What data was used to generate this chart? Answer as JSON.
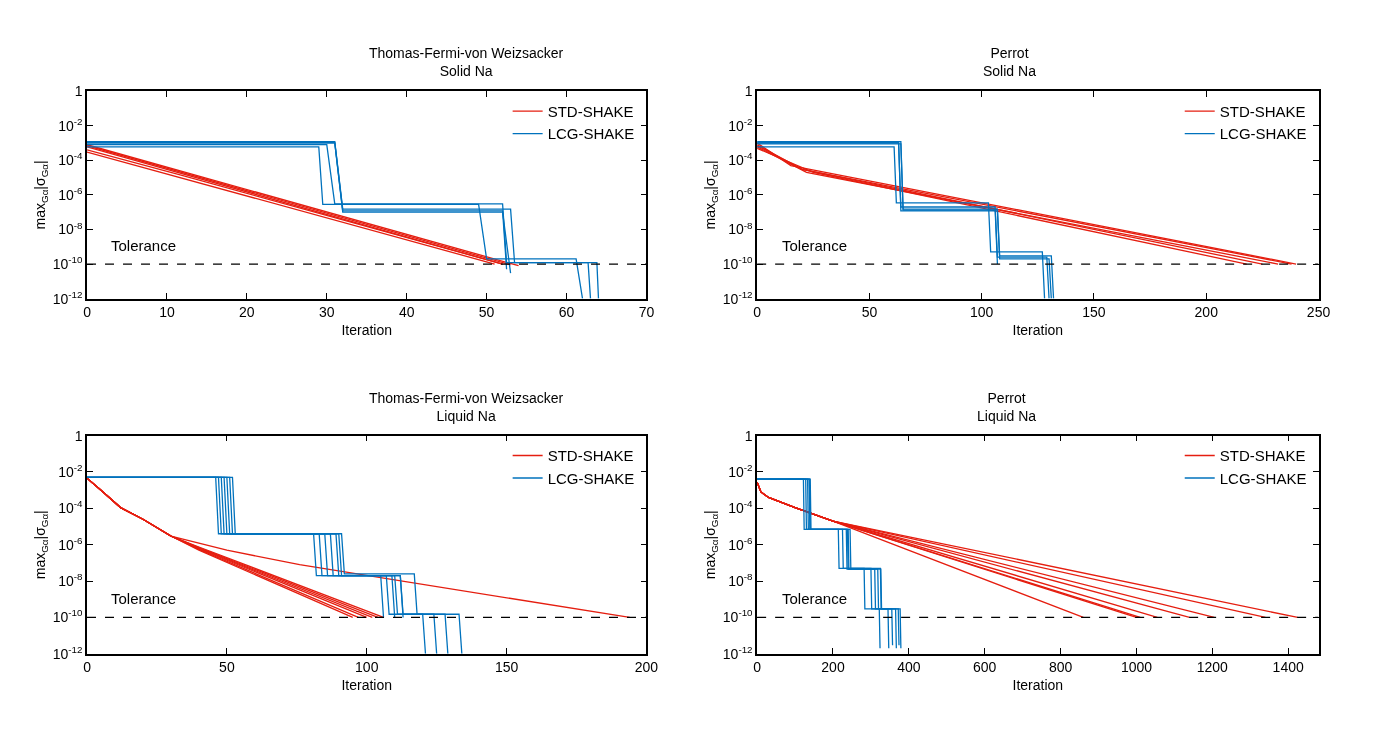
{
  "chart_data": [
    {
      "type": "line",
      "title": "Thomas-Fermi-von Weizsacker",
      "subtitle": "Solid Na",
      "xlabel": "Iteration",
      "ylabel": "max$_{Gα}$|σ$_{Gα}$|",
      "log": "y",
      "legend": "top right",
      "line_style": "solid",
      "xlim": [
        0,
        70
      ],
      "xticks": [
        0,
        10,
        20,
        30,
        40,
        50,
        60,
        70
      ],
      "ylim": [
        1e-12,
        1
      ],
      "yticks": [
        1,
        {
          "value": 0.01,
          "label": "10$^{-2}$"
        },
        {
          "value": 0.0001,
          "label": "10$^{-4}$"
        },
        {
          "value": 1e-06,
          "label": "10$^{-6}$"
        },
        {
          "value": 1e-08,
          "label": "10$^{-8}$"
        },
        {
          "value": 1e-10,
          "label": "10$^{-10}$"
        },
        {
          "value": 1e-12,
          "label": "10$^{-12}$"
        }
      ],
      "ref_lines": [
        {
          "axis": "y",
          "value": 1e-10,
          "label": "Tolerance",
          "color": "#000000",
          "line_style": "dashed"
        }
      ],
      "series": [
        {
          "name": "STD-SHAKE",
          "color": "#e51e10",
          "x": [
            0,
            54
          ],
          "values": [
            0.0008,
            8e-11
          ]
        },
        {
          "color": "#e51e10",
          "x": [
            0,
            53
          ],
          "values": [
            0.0007,
            9e-11
          ]
        },
        {
          "color": "#e51e10",
          "x": [
            0,
            52
          ],
          "values": [
            0.0006,
            1e-10
          ]
        },
        {
          "color": "#e51e10",
          "x": [
            0,
            12,
            52
          ],
          "values": [
            0.0004,
            1.3e-05,
            1e-10
          ]
        },
        {
          "color": "#e51e10",
          "x": [
            0,
            51
          ],
          "values": [
            0.0003,
            1e-10
          ]
        },
        {
          "name": "LCG-SHAKE",
          "color": "#0072bd",
          "x": [
            0,
            31,
            32,
            53,
            53.5,
            63.8,
            64
          ],
          "values": [
            0.0012,
            0.0012,
            1.5e-07,
            1.5e-07,
            1.2e-10,
            1.2e-10,
            1e-12
          ]
        },
        {
          "color": "#0072bd",
          "x": [
            0,
            31,
            32,
            52,
            53
          ],
          "values": [
            0.001,
            0.001,
            1e-07,
            1e-07,
            3e-11
          ]
        },
        {
          "color": "#0072bd",
          "x": [
            0,
            30,
            31,
            52,
            52.5,
            62.7,
            63
          ],
          "values": [
            0.0008,
            0.0008,
            3e-07,
            3e-07,
            1.2e-10,
            1.2e-10,
            1e-12
          ]
        },
        {
          "color": "#0072bd",
          "x": [
            0,
            29,
            29.5,
            49,
            50,
            61.2,
            62
          ],
          "values": [
            0.0006,
            0.0006,
            2.8e-07,
            2.8e-07,
            2e-10,
            2e-10,
            1e-12
          ]
        },
        {
          "color": "#0072bd",
          "x": [
            0,
            31,
            32,
            52,
            52.5
          ],
          "values": [
            0.0011,
            0.0011,
            1.2e-07,
            1.2e-07,
            5e-11
          ]
        }
      ]
    },
    {
      "type": "line",
      "title": "Perrot",
      "subtitle": "Solid Na",
      "xlabel": "Iteration",
      "ylabel": "max$_{Gα}$|σ$_{Gα}$|",
      "log": "y",
      "legend": "top right",
      "line_style": "solid",
      "xlim": [
        0,
        250
      ],
      "xticks": [
        0,
        50,
        100,
        150,
        200,
        250
      ],
      "ylim": [
        1e-12,
        1
      ],
      "yticks": [
        1,
        {
          "value": 0.01,
          "label": "10$^{-2}$"
        },
        {
          "value": 0.0001,
          "label": "10$^{-4}$"
        },
        {
          "value": 1e-06,
          "label": "10$^{-6}$"
        },
        {
          "value": 1e-08,
          "label": "10$^{-8}$"
        },
        {
          "value": 1e-10,
          "label": "10$^{-10}$"
        },
        {
          "value": 1e-12,
          "label": "10$^{-12}$"
        }
      ],
      "ref_lines": [
        {
          "axis": "y",
          "value": 1e-10,
          "label": "Tolerance",
          "color": "#000000",
          "line_style": "dashed"
        }
      ],
      "series": [
        {
          "name": "STD-SHAKE",
          "color": "#e51e10",
          "x": [
            0,
            15,
            240
          ],
          "values": [
            0.001,
            5e-05,
            1e-10
          ]
        },
        {
          "color": "#e51e10",
          "x": [
            0,
            20,
            238
          ],
          "values": [
            0.0008,
            3e-05,
            1e-10
          ]
        },
        {
          "color": "#e51e10",
          "x": [
            0,
            22,
            232
          ],
          "values": [
            0.0006,
            2e-05,
            1e-10
          ]
        },
        {
          "color": "#e51e10",
          "x": [
            0,
            20,
            225
          ],
          "values": [
            0.0007,
            3e-05,
            1e-10
          ]
        },
        {
          "color": "#e51e10",
          "x": [
            0,
            25,
            218
          ],
          "values": [
            0.0005,
            2e-05,
            1e-10
          ]
        },
        {
          "name": "LCG-SHAKE",
          "color": "#0072bd",
          "x": [
            0,
            64,
            65,
            107,
            108,
            131,
            132
          ],
          "values": [
            0.0012,
            0.0012,
            1.5e-07,
            1.5e-07,
            3e-10,
            3e-10,
            1e-12
          ]
        },
        {
          "color": "#0072bd",
          "x": [
            0,
            63,
            64,
            106,
            107,
            129,
            130
          ],
          "values": [
            0.001,
            0.001,
            2e-07,
            2e-07,
            2.5e-10,
            2.5e-10,
            1e-12
          ]
        },
        {
          "color": "#0072bd",
          "x": [
            0,
            61,
            62,
            103,
            104,
            127,
            128
          ],
          "values": [
            0.0006,
            0.0006,
            3.5e-07,
            3.5e-07,
            5e-10,
            5e-10,
            1e-12
          ]
        },
        {
          "color": "#0072bd",
          "x": [
            0,
            64,
            65,
            106,
            107
          ],
          "values": [
            0.0009,
            0.0009,
            1.3e-07,
            1.3e-07,
            1e-10
          ]
        },
        {
          "color": "#0072bd",
          "x": [
            0,
            63,
            64,
            107,
            108,
            130,
            131
          ],
          "values": [
            0.0011,
            0.0011,
            1.2e-07,
            1.2e-07,
            2e-10,
            2e-10,
            1e-12
          ]
        }
      ]
    },
    {
      "type": "line",
      "title": "Thomas-Fermi-von Weizsacker",
      "subtitle": "Liquid Na",
      "xlabel": "Iteration",
      "ylabel": "max$_{Gα}$|σ$_{Gα}$|",
      "log": "y",
      "legend": "top right",
      "line_style": "solid",
      "xlim": [
        0,
        200
      ],
      "xticks": [
        0,
        50,
        100,
        150,
        200
      ],
      "ylim": [
        1e-12,
        1
      ],
      "yticks": [
        1,
        {
          "value": 0.01,
          "label": "10$^{-2}$"
        },
        {
          "value": 0.0001,
          "label": "10$^{-4}$"
        },
        {
          "value": 1e-06,
          "label": "10$^{-6}$"
        },
        {
          "value": 1e-08,
          "label": "10$^{-8}$"
        },
        {
          "value": 1e-10,
          "label": "10$^{-10}$"
        },
        {
          "value": 1e-12,
          "label": "10$^{-12}$"
        }
      ],
      "ref_lines": [
        {
          "axis": "y",
          "value": 1e-10,
          "label": "Tolerance",
          "color": "#000000",
          "line_style": "dashed"
        }
      ],
      "series": [
        {
          "name": "STD-SHAKE",
          "color": "#e51e10",
          "x": [
            0,
            5,
            12,
            20,
            30,
            50,
            76,
            194
          ],
          "values": [
            0.0045,
            0.001,
            0.00011,
            2.5e-05,
            3e-06,
            5e-07,
            8e-08,
            1e-10
          ]
        },
        {
          "color": "#e51e10",
          "x": [
            0,
            5,
            12,
            20,
            30,
            40,
            95
          ],
          "values": [
            0.0045,
            0.001,
            0.00011,
            2.5e-05,
            3e-06,
            5e-07,
            1e-10
          ]
        },
        {
          "color": "#e51e10",
          "x": [
            0,
            5,
            12,
            20,
            30,
            40,
            97
          ],
          "values": [
            0.0045,
            0.001,
            0.00011,
            2.5e-05,
            3e-06,
            5.5e-07,
            1e-10
          ]
        },
        {
          "color": "#e51e10",
          "x": [
            0,
            5,
            12,
            20,
            30,
            40,
            100
          ],
          "values": [
            0.0045,
            0.001,
            0.00011,
            2.5e-05,
            3e-06,
            6e-07,
            1e-10
          ]
        },
        {
          "color": "#e51e10",
          "x": [
            0,
            5,
            12,
            20,
            30,
            40,
            102
          ],
          "values": [
            0.0045,
            0.001,
            0.00011,
            2.5e-05,
            3e-06,
            6.5e-07,
            1e-10
          ]
        },
        {
          "color": "#e51e10",
          "x": [
            0,
            5,
            12,
            20,
            30,
            40,
            104
          ],
          "values": [
            0.0045,
            0.001,
            0.00011,
            2.5e-05,
            3e-06,
            7e-07,
            1e-10
          ]
        },
        {
          "color": "#e51e10",
          "x": [
            0,
            5,
            12,
            20,
            30,
            40,
            106
          ],
          "values": [
            0.0045,
            0.001,
            0.00011,
            2.5e-05,
            3e-06,
            7.5e-07,
            1e-10
          ]
        },
        {
          "name": "LCG-SHAKE",
          "color": "#0072bd",
          "x": [
            0,
            46,
            47,
            81,
            82,
            105,
            106
          ],
          "values": [
            0.005,
            0.005,
            4e-06,
            4e-06,
            2e-08,
            2e-08,
            1e-10
          ]
        },
        {
          "color": "#0072bd",
          "x": [
            0,
            47,
            48,
            83,
            84,
            107,
            108,
            120,
            121
          ],
          "values": [
            0.005,
            0.005,
            4e-06,
            4e-06,
            2e-08,
            2e-08,
            1.5e-10,
            1.5e-10,
            1e-12
          ]
        },
        {
          "color": "#0072bd",
          "x": [
            0,
            48,
            49,
            85,
            86,
            109,
            110
          ],
          "values": [
            0.005,
            0.005,
            4e-06,
            4e-06,
            2e-08,
            2e-08,
            1e-10
          ]
        },
        {
          "color": "#0072bd",
          "x": [
            0,
            49,
            50,
            87,
            88,
            110,
            111,
            124,
            125
          ],
          "values": [
            0.005,
            0.005,
            4e-06,
            4e-06,
            2e-08,
            2e-08,
            1.5e-10,
            1.5e-10,
            1e-12
          ]
        },
        {
          "color": "#0072bd",
          "x": [
            0,
            50,
            51,
            89,
            90,
            112,
            113,
            128,
            129
          ],
          "values": [
            0.005,
            0.005,
            4e-06,
            4e-06,
            2e-08,
            2e-08,
            1.5e-10,
            1.5e-10,
            1e-12
          ]
        },
        {
          "color": "#0072bd",
          "x": [
            0,
            51,
            52,
            91,
            92,
            117,
            118,
            133,
            134
          ],
          "values": [
            0.005,
            0.005,
            4e-06,
            4e-06,
            2.5e-08,
            2.5e-08,
            1.5e-10,
            1.5e-10,
            1e-12
          ]
        },
        {
          "color": "#0072bd",
          "x": [
            0,
            52,
            53,
            90,
            91,
            112,
            113
          ],
          "values": [
            0.005,
            0.005,
            4e-06,
            4e-06,
            2e-08,
            2e-08,
            1e-10
          ]
        }
      ]
    },
    {
      "type": "line",
      "title": "Perrot",
      "subtitle": "Liquid Na",
      "xlabel": "Iteration",
      "ylabel": "max$_{Gα}$|σ$_{Gα}$|",
      "log": "y",
      "legend": "top right",
      "line_style": "solid",
      "xlim": [
        0,
        1480
      ],
      "xticks": [
        0,
        200,
        400,
        600,
        800,
        1000,
        1200,
        1400
      ],
      "ylim": [
        1e-12,
        1
      ],
      "yticks": [
        1,
        {
          "value": 0.01,
          "label": "10$^{-2}$"
        },
        {
          "value": 0.0001,
          "label": "10$^{-4}$"
        },
        {
          "value": 1e-06,
          "label": "10$^{-6}$"
        },
        {
          "value": 1e-08,
          "label": "10$^{-8}$"
        },
        {
          "value": 1e-10,
          "label": "10$^{-10}$"
        },
        {
          "value": 1e-12,
          "label": "10$^{-12}$"
        }
      ],
      "ref_lines": [
        {
          "axis": "y",
          "value": 1e-10,
          "label": "Tolerance",
          "color": "#000000",
          "line_style": "dashed"
        }
      ],
      "series": [
        {
          "name": "STD-SHAKE",
          "color": "#e51e10",
          "x": [
            0,
            10,
            30,
            100,
            200,
            860
          ],
          "values": [
            0.0027,
            0.0008,
            0.0004,
            0.00011,
            2e-05,
            1e-10
          ]
        },
        {
          "color": "#e51e10",
          "x": [
            0,
            10,
            30,
            100,
            200,
            1000
          ],
          "values": [
            0.0027,
            0.0008,
            0.0004,
            0.00011,
            2e-05,
            1e-10
          ]
        },
        {
          "color": "#e51e10",
          "x": [
            0,
            10,
            30,
            100,
            200,
            1010
          ],
          "values": [
            0.0027,
            0.0008,
            0.0004,
            0.00011,
            2e-05,
            1e-10
          ]
        },
        {
          "color": "#e51e10",
          "x": [
            0,
            10,
            30,
            100,
            200,
            1055
          ],
          "values": [
            0.0027,
            0.0008,
            0.0004,
            0.00011,
            2e-05,
            1e-10
          ]
        },
        {
          "color": "#e51e10",
          "x": [
            0,
            10,
            30,
            100,
            200,
            1140
          ],
          "values": [
            0.0027,
            0.0008,
            0.0004,
            0.00011,
            2e-05,
            1e-10
          ]
        },
        {
          "color": "#e51e10",
          "x": [
            0,
            10,
            30,
            100,
            200,
            1205
          ],
          "values": [
            0.0027,
            0.0008,
            0.0004,
            0.00011,
            2e-05,
            1e-10
          ]
        },
        {
          "color": "#e51e10",
          "x": [
            0,
            10,
            30,
            100,
            200,
            1340
          ],
          "values": [
            0.0027,
            0.0008,
            0.0004,
            0.00011,
            2e-05,
            1e-10
          ]
        },
        {
          "color": "#e51e10",
          "x": [
            0,
            10,
            30,
            100,
            200,
            1425
          ],
          "values": [
            0.0027,
            0.0008,
            0.0004,
            0.00011,
            2e-05,
            1e-10
          ]
        },
        {
          "name": "LCG-SHAKE",
          "color": "#0072bd",
          "x": [
            0,
            122,
            124,
            214,
            216,
            282,
            284,
            322,
            324
          ],
          "values": [
            0.004,
            0.004,
            7e-06,
            7e-06,
            5e-08,
            5e-08,
            3e-10,
            3e-10,
            2e-12
          ]
        },
        {
          "color": "#0072bd",
          "x": [
            0,
            128,
            130,
            225,
            227,
            300,
            302,
            345,
            347
          ],
          "values": [
            0.004,
            0.004,
            7e-06,
            7e-06,
            5e-08,
            5e-08,
            3e-10,
            3e-10,
            2e-12
          ]
        },
        {
          "color": "#0072bd",
          "x": [
            0,
            133,
            135,
            235,
            237,
            310,
            312,
            355,
            357
          ],
          "values": [
            0.004,
            0.004,
            7e-06,
            7e-06,
            4.5e-08,
            4.5e-08,
            3e-10,
            3e-10,
            3e-12
          ]
        },
        {
          "color": "#0072bd",
          "x": [
            0,
            137,
            139,
            240,
            242,
            318,
            320,
            365,
            367
          ],
          "values": [
            0.004,
            0.004,
            7e-06,
            7e-06,
            4.5e-08,
            4.5e-08,
            3e-10,
            3e-10,
            2e-12
          ]
        },
        {
          "color": "#0072bd",
          "x": [
            0,
            140,
            142,
            245,
            247,
            325,
            327,
            372,
            374
          ],
          "values": [
            0.004,
            0.004,
            7e-06,
            7e-06,
            5e-08,
            5e-08,
            3e-10,
            3e-10,
            3e-12
          ]
        },
        {
          "color": "#0072bd",
          "x": [
            0,
            138,
            140,
            238,
            240,
            326,
            328,
            377,
            379
          ],
          "values": [
            0.004,
            0.004,
            7e-06,
            7e-06,
            4.5e-08,
            4.5e-08,
            3e-10,
            3e-10,
            2e-12
          ]
        }
      ]
    }
  ]
}
